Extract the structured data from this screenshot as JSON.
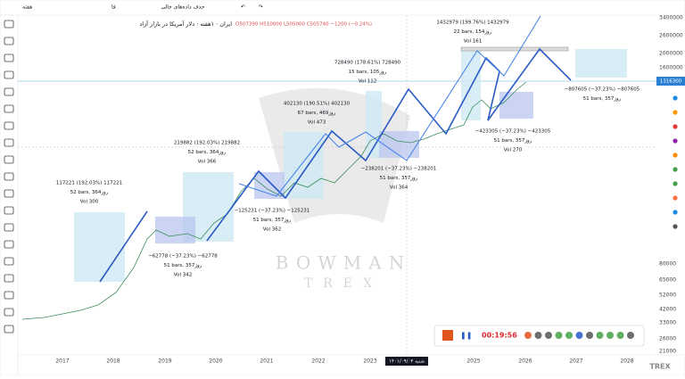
{
  "toolbar": {
    "interval": "هفته",
    "language": "فا",
    "remove_empty": "حذف داده‌های خالی"
  },
  "legend": {
    "symbol": "ایران · ۱هفته · دلار آمریکا در بازار آزاد",
    "ohlc": "O507390 H510000 L505000 C505740 −1200 (−0.24%)"
  },
  "price_axis": {
    "labels": [
      "3400000",
      "2600000",
      "2000000",
      "1600000",
      "80000",
      "65000",
      "52000",
      "42000",
      "33000",
      "26000",
      "21000"
    ],
    "last_price": "1316300"
  },
  "time_axis": {
    "labels": [
      "2017",
      "2018",
      "2019",
      "2020",
      "2021",
      "2022",
      "2023",
      "2025",
      "2026",
      "2027",
      "2028"
    ],
    "cursor_date": "شنبه ۱۴۰۱/۰۹/۰۴"
  },
  "measurements": [
    {
      "lines": [
        "117221 (192.03%) 117221",
        "52 bars, 364روز",
        "Vol 300"
      ]
    },
    {
      "lines": [
        "219882 (192.03%) 219882",
        "52 bars, 364روز",
        "Vol 366"
      ]
    },
    {
      "lines": [
        "402130 (190.51%) 402130",
        "67 bars, 469روز",
        "Vol 473"
      ]
    },
    {
      "lines": [
        "728490 (178.61%) 728490",
        "15 bars, 105روز",
        "Vol 112"
      ]
    },
    {
      "lines": [
        "1432979 (199.76%) 1432979",
        "22 bars, 154روز",
        "Vol 161"
      ]
    },
    {
      "lines": [
        "−62778 (−37.23%) −62778",
        "51 bars, 357روز",
        "Vol 342"
      ]
    },
    {
      "lines": [
        "−125231 (−37.23%) −125231",
        "51 bars, 357روز",
        "Vol 362"
      ]
    },
    {
      "lines": [
        "−238201 (−37.23%) −238201",
        "51 bars, 357روز",
        "Vol 364"
      ]
    },
    {
      "lines": [
        "−423305 (−37.23%) −423305",
        "51 bars, 357روز",
        "Vol 270"
      ]
    },
    {
      "lines": [
        "−807605 (−37.23%) −807605",
        "51 bars, 357روز"
      ]
    }
  ],
  "watermark": {
    "line1": "BOWMAN",
    "line2": "TREX"
  },
  "recorder": {
    "timer": "00:19:56"
  },
  "logo": "TREX"
}
